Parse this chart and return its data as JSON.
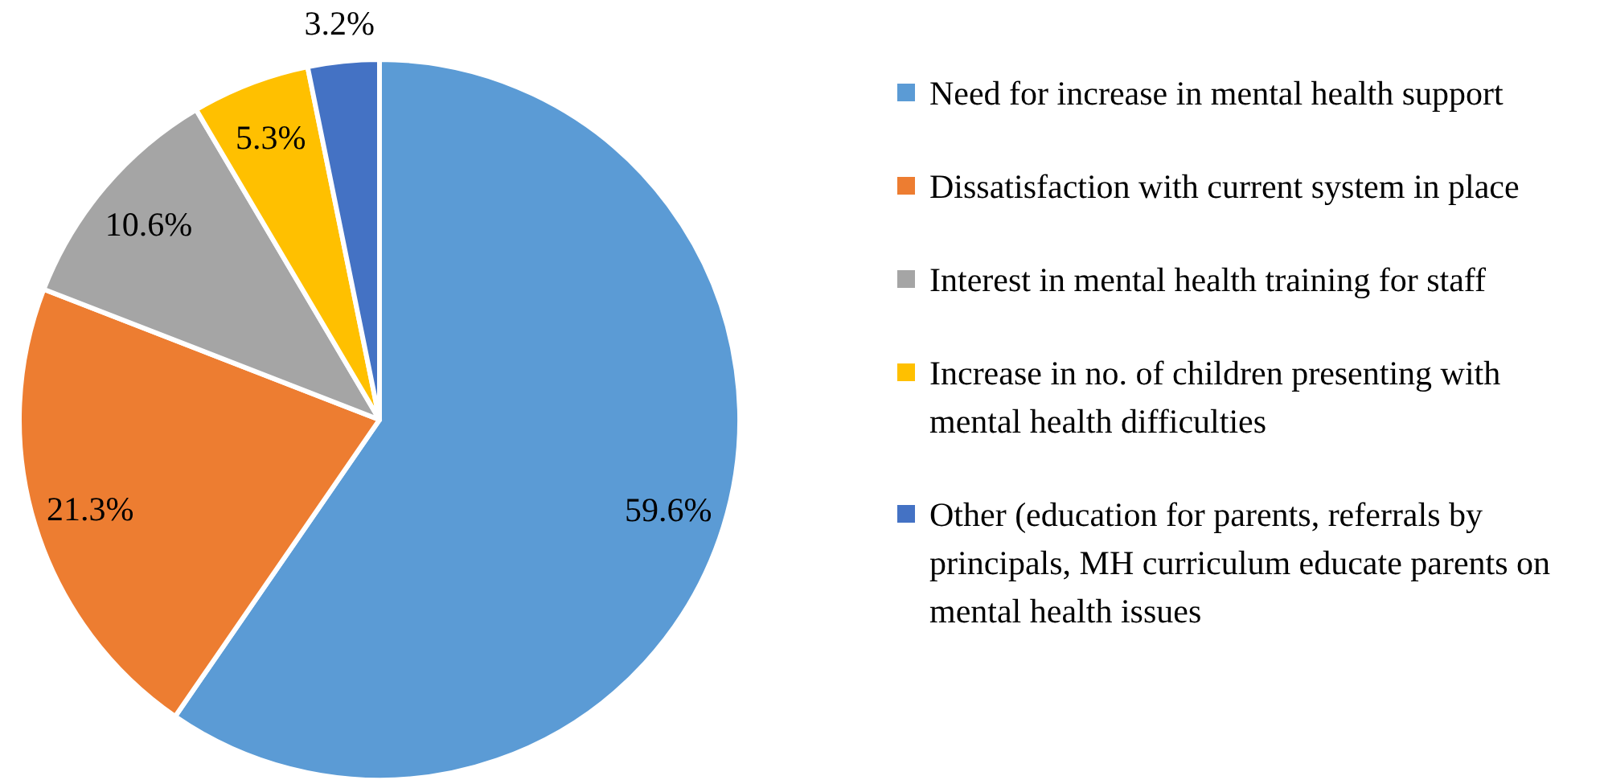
{
  "chart_data": {
    "type": "pie",
    "categories": [
      "Need for increase in mental health support",
      "Dissatisfaction with current system in place",
      "Interest in mental health training for staff",
      "Increase in no. of children presenting with mental health difficulties",
      "Other (education for parents, referrals by principals, MH curriculum  educate parents on mental health issues"
    ],
    "values": [
      59.6,
      21.3,
      10.6,
      5.3,
      3.2
    ],
    "colors": [
      "#5b9bd5",
      "#ed7d31",
      "#a5a5a5",
      "#ffc000",
      "#4472c4"
    ],
    "value_labels": [
      "59.6%",
      "21.3%",
      "10.6%",
      "5.3%",
      "3.2%"
    ],
    "legend": "right"
  }
}
